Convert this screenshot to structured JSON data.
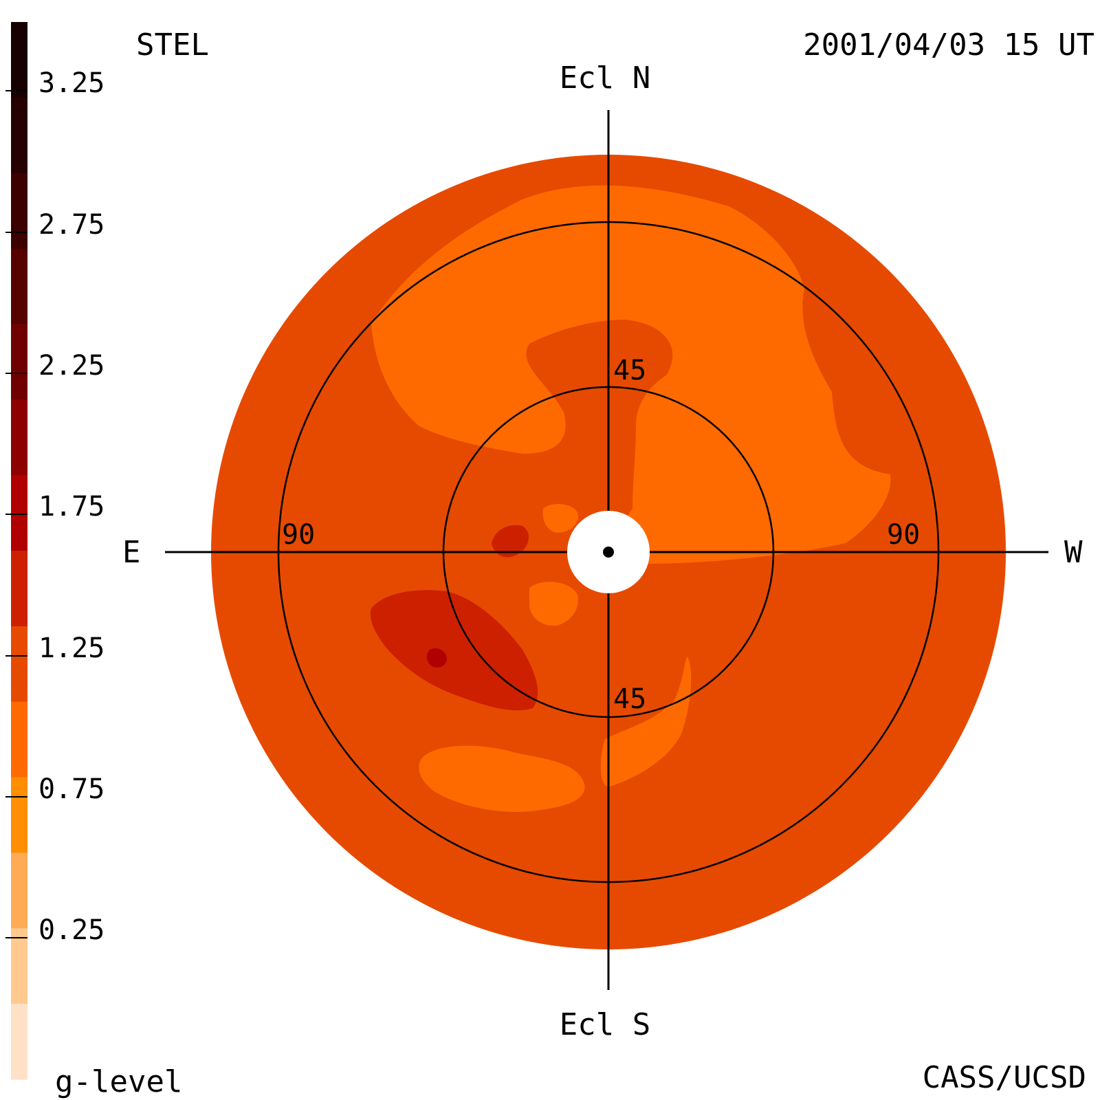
{
  "header": {
    "instrument": "STEL",
    "timestamp": "2001/04/03 15 UT",
    "credit": "CASS/UCSD"
  },
  "colorbar": {
    "label": "g-level",
    "ticks": [
      "3.25",
      "2.75",
      "2.25",
      "1.75",
      "1.25",
      "0.75",
      "0.25"
    ],
    "colors_top_to_bottom": [
      "#170000",
      "#260000",
      "#3c0000",
      "#560000",
      "#700000",
      "#8e0000",
      "#b00000",
      "#cc2000",
      "#e64a00",
      "#ff6a00",
      "#ff8e00",
      "#ffaa55",
      "#ffc990",
      "#ffe1c8"
    ]
  },
  "map": {
    "orientation": {
      "north": "Ecl N",
      "south": "Ecl S",
      "east": "E",
      "west": "W"
    },
    "ring_labels": {
      "inner_north": "45",
      "inner_south": "45",
      "outer_east": "90",
      "outer_west": "90"
    },
    "colors": {
      "background_level": "#e64a00",
      "light_level": "#ff6a00",
      "dark_level": "#cc2000",
      "darkest_level": "#b00000",
      "sun_occulter": "#ffffff",
      "lines": "#000000"
    }
  }
}
